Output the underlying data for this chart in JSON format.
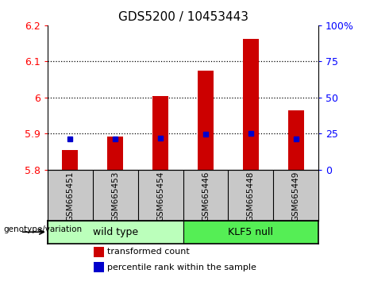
{
  "title": "GDS5200 / 10453443",
  "categories": [
    "GSM665451",
    "GSM665453",
    "GSM665454",
    "GSM665446",
    "GSM665448",
    "GSM665449"
  ],
  "red_values": [
    5.855,
    5.893,
    6.005,
    6.075,
    6.162,
    5.965
  ],
  "blue_values": [
    5.885,
    5.886,
    5.887,
    5.898,
    5.902,
    5.886
  ],
  "ymin": 5.8,
  "ymax": 6.2,
  "yticks": [
    5.8,
    5.9,
    6.0,
    6.1,
    6.2
  ],
  "ytick_labels": [
    "5.8",
    "5.9",
    "6",
    "6.1",
    "6.2"
  ],
  "right_yticks": [
    0,
    25,
    50,
    75,
    100
  ],
  "right_ytick_labels": [
    "0",
    "25",
    "50",
    "75",
    "100%"
  ],
  "grid_lines": [
    5.9,
    6.0,
    6.1
  ],
  "bar_color": "#cc0000",
  "dot_color": "#0000cc",
  "bar_width": 0.35,
  "wt_color": "#bbffbb",
  "klf_color": "#55ee55",
  "xlabels_bg": "#c8c8c8",
  "legend_red_label": "transformed count",
  "legend_blue_label": "percentile rank within the sample",
  "geno_label": "genotype/variation",
  "wt_label": "wild type",
  "klf_label": "KLF5 null"
}
